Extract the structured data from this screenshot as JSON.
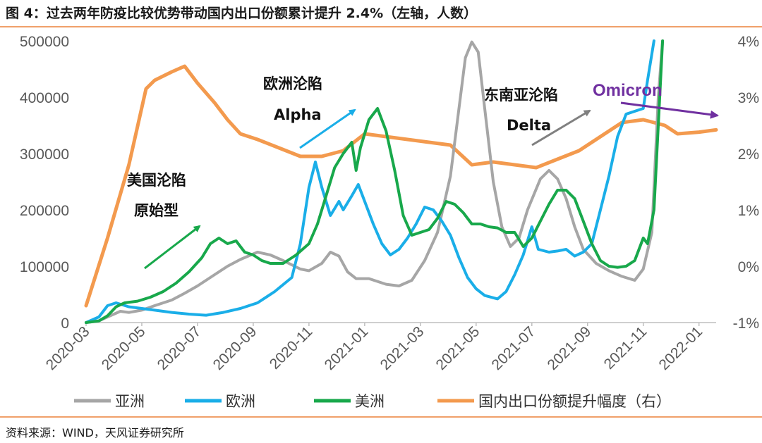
{
  "title": "图 4：过去两年防疫比较优势带动国内出口份额累计提升 2.4%（左轴，人数）",
  "source": "资料来源：WIND，天风证券研究所",
  "chart_data": {
    "type": "line",
    "x_tick_labels": [
      "2020-03",
      "2020-05",
      "2020-07",
      "2020-09",
      "2020-11",
      "2021-01",
      "2021-03",
      "2021-05",
      "2021-07",
      "2021-09",
      "2021-11",
      "2022-01"
    ],
    "ylim_left": [
      0,
      500000
    ],
    "yticks_left": [
      "0",
      "100000",
      "200000",
      "300000",
      "400000",
      "500000"
    ],
    "ylim_right": [
      -1,
      4
    ],
    "yticks_right": [
      "-1%",
      "0%",
      "1%",
      "2%",
      "3%",
      "4%"
    ],
    "grid": false,
    "legend_position": "bottom",
    "series": [
      {
        "name": "亚洲",
        "axis": "left",
        "color": "#a6a6a6",
        "points": [
          [
            0,
            0
          ],
          [
            0.3,
            3000
          ],
          [
            0.5,
            10000
          ],
          [
            0.8,
            20000
          ],
          [
            1,
            18000
          ],
          [
            1.3,
            22000
          ],
          [
            1.6,
            30000
          ],
          [
            2,
            40000
          ],
          [
            2.3,
            52000
          ],
          [
            2.6,
            65000
          ],
          [
            3,
            85000
          ],
          [
            3.3,
            100000
          ],
          [
            3.6,
            112000
          ],
          [
            4,
            125000
          ],
          [
            4.3,
            120000
          ],
          [
            4.6,
            110000
          ],
          [
            5,
            95000
          ],
          [
            5.2,
            92000
          ],
          [
            5.5,
            105000
          ],
          [
            5.7,
            125000
          ],
          [
            5.9,
            118000
          ],
          [
            6.1,
            90000
          ],
          [
            6.3,
            78000
          ],
          [
            6.6,
            78000
          ],
          [
            7,
            68000
          ],
          [
            7.3,
            65000
          ],
          [
            7.6,
            75000
          ],
          [
            7.9,
            110000
          ],
          [
            8.2,
            160000
          ],
          [
            8.5,
            260000
          ],
          [
            8.7,
            380000
          ],
          [
            8.85,
            470000
          ],
          [
            9,
            498000
          ],
          [
            9.15,
            480000
          ],
          [
            9.3,
            380000
          ],
          [
            9.5,
            250000
          ],
          [
            9.7,
            170000
          ],
          [
            9.9,
            135000
          ],
          [
            10.1,
            150000
          ],
          [
            10.3,
            200000
          ],
          [
            10.6,
            255000
          ],
          [
            10.8,
            270000
          ],
          [
            11,
            255000
          ],
          [
            11.2,
            220000
          ],
          [
            11.4,
            170000
          ],
          [
            11.6,
            130000
          ],
          [
            11.9,
            105000
          ],
          [
            12.2,
            92000
          ],
          [
            12.5,
            82000
          ],
          [
            12.8,
            75000
          ],
          [
            13,
            95000
          ],
          [
            13.2,
            160000
          ],
          [
            13.35,
            400000
          ],
          [
            13.45,
            500000
          ]
        ]
      },
      {
        "name": "欧洲",
        "axis": "left",
        "color": "#1aaee8",
        "points": [
          [
            0,
            0
          ],
          [
            0.3,
            10000
          ],
          [
            0.5,
            30000
          ],
          [
            0.7,
            35000
          ],
          [
            1,
            28000
          ],
          [
            1.3,
            25000
          ],
          [
            1.6,
            22000
          ],
          [
            2,
            18000
          ],
          [
            2.4,
            15000
          ],
          [
            2.8,
            13000
          ],
          [
            3.2,
            18000
          ],
          [
            3.6,
            25000
          ],
          [
            4,
            35000
          ],
          [
            4.4,
            55000
          ],
          [
            4.8,
            80000
          ],
          [
            5,
            140000
          ],
          [
            5.2,
            240000
          ],
          [
            5.35,
            285000
          ],
          [
            5.5,
            240000
          ],
          [
            5.7,
            190000
          ],
          [
            5.9,
            215000
          ],
          [
            6,
            200000
          ],
          [
            6.2,
            225000
          ],
          [
            6.35,
            245000
          ],
          [
            6.5,
            215000
          ],
          [
            6.7,
            175000
          ],
          [
            6.9,
            140000
          ],
          [
            7.1,
            120000
          ],
          [
            7.3,
            130000
          ],
          [
            7.5,
            150000
          ],
          [
            7.7,
            175000
          ],
          [
            7.9,
            205000
          ],
          [
            8.1,
            200000
          ],
          [
            8.3,
            180000
          ],
          [
            8.5,
            155000
          ],
          [
            8.7,
            115000
          ],
          [
            8.9,
            80000
          ],
          [
            9.1,
            60000
          ],
          [
            9.3,
            48000
          ],
          [
            9.6,
            42000
          ],
          [
            9.8,
            55000
          ],
          [
            10,
            85000
          ],
          [
            10.2,
            120000
          ],
          [
            10.4,
            170000
          ],
          [
            10.55,
            130000
          ],
          [
            10.8,
            125000
          ],
          [
            11,
            127000
          ],
          [
            11.2,
            130000
          ],
          [
            11.4,
            118000
          ],
          [
            11.6,
            125000
          ],
          [
            11.8,
            140000
          ],
          [
            12,
            200000
          ],
          [
            12.2,
            260000
          ],
          [
            12.4,
            330000
          ],
          [
            12.6,
            370000
          ],
          [
            12.8,
            375000
          ],
          [
            13,
            380000
          ],
          [
            13.1,
            430000
          ],
          [
            13.25,
            500000
          ]
        ]
      },
      {
        "name": "美洲",
        "axis": "left",
        "color": "#18a84b",
        "points": [
          [
            0,
            0
          ],
          [
            0.3,
            3000
          ],
          [
            0.5,
            12000
          ],
          [
            0.7,
            28000
          ],
          [
            0.9,
            35000
          ],
          [
            1.2,
            38000
          ],
          [
            1.5,
            45000
          ],
          [
            1.8,
            55000
          ],
          [
            2.1,
            70000
          ],
          [
            2.4,
            90000
          ],
          [
            2.7,
            115000
          ],
          [
            2.9,
            140000
          ],
          [
            3.1,
            150000
          ],
          [
            3.3,
            140000
          ],
          [
            3.5,
            145000
          ],
          [
            3.7,
            125000
          ],
          [
            3.9,
            120000
          ],
          [
            4.1,
            110000
          ],
          [
            4.3,
            105000
          ],
          [
            4.6,
            105000
          ],
          [
            4.9,
            120000
          ],
          [
            5.2,
            140000
          ],
          [
            5.4,
            175000
          ],
          [
            5.6,
            225000
          ],
          [
            5.8,
            275000
          ],
          [
            6,
            300000
          ],
          [
            6.2,
            320000
          ],
          [
            6.3,
            270000
          ],
          [
            6.4,
            310000
          ],
          [
            6.6,
            360000
          ],
          [
            6.8,
            380000
          ],
          [
            7,
            340000
          ],
          [
            7.2,
            270000
          ],
          [
            7.4,
            190000
          ],
          [
            7.6,
            155000
          ],
          [
            7.8,
            160000
          ],
          [
            8,
            165000
          ],
          [
            8.2,
            185000
          ],
          [
            8.4,
            215000
          ],
          [
            8.6,
            210000
          ],
          [
            8.8,
            195000
          ],
          [
            9,
            175000
          ],
          [
            9.2,
            175000
          ],
          [
            9.4,
            170000
          ],
          [
            9.6,
            168000
          ],
          [
            9.8,
            160000
          ],
          [
            10,
            160000
          ],
          [
            10.2,
            135000
          ],
          [
            10.4,
            150000
          ],
          [
            10.6,
            180000
          ],
          [
            10.8,
            210000
          ],
          [
            11,
            235000
          ],
          [
            11.2,
            235000
          ],
          [
            11.4,
            220000
          ],
          [
            11.6,
            180000
          ],
          [
            11.8,
            140000
          ],
          [
            12,
            110000
          ],
          [
            12.2,
            100000
          ],
          [
            12.4,
            98000
          ],
          [
            12.6,
            100000
          ],
          [
            12.8,
            110000
          ],
          [
            13,
            150000
          ],
          [
            13.1,
            140000
          ],
          [
            13.25,
            200000
          ],
          [
            13.35,
            350000
          ],
          [
            13.45,
            500000
          ]
        ]
      },
      {
        "name": "国内出口份额提升幅度（右）",
        "axis": "right",
        "color": "#f39a4e",
        "points": [
          [
            0,
            -0.7
          ],
          [
            0.5,
            0.5
          ],
          [
            1,
            1.8
          ],
          [
            1.4,
            3.15
          ],
          [
            1.6,
            3.3
          ],
          [
            2,
            3.45
          ],
          [
            2.3,
            3.55
          ],
          [
            2.6,
            3.25
          ],
          [
            3,
            2.9
          ],
          [
            3.3,
            2.6
          ],
          [
            3.6,
            2.35
          ],
          [
            4,
            2.25
          ],
          [
            4.5,
            2.1
          ],
          [
            5,
            1.95
          ],
          [
            5.5,
            1.95
          ],
          [
            6,
            2.05
          ],
          [
            6.5,
            2.35
          ],
          [
            7,
            2.3
          ],
          [
            7.5,
            2.25
          ],
          [
            8,
            2.2
          ],
          [
            8.5,
            2.15
          ],
          [
            9,
            1.8
          ],
          [
            9.5,
            1.85
          ],
          [
            10,
            1.8
          ],
          [
            10.5,
            1.75
          ],
          [
            11,
            1.9
          ],
          [
            11.5,
            2.05
          ],
          [
            12,
            2.3
          ],
          [
            12.5,
            2.55
          ],
          [
            13,
            2.6
          ],
          [
            13.5,
            2.5
          ],
          [
            13.8,
            2.35
          ],
          [
            14.3,
            2.38
          ],
          [
            14.7,
            2.42
          ]
        ]
      }
    ],
    "annotations": [
      {
        "lines": [
          "美国沦陷",
          "原始型"
        ],
        "arrow_color": "#18a84b"
      },
      {
        "lines": [
          "欧洲沦陷",
          "Alpha"
        ],
        "arrow_color": "#1aaee8"
      },
      {
        "lines": [
          "东南亚沦陷",
          "Delta"
        ],
        "arrow_color": "#808080"
      },
      {
        "lines": [
          "Omicron"
        ],
        "arrow_color": "#7030a0"
      }
    ]
  }
}
